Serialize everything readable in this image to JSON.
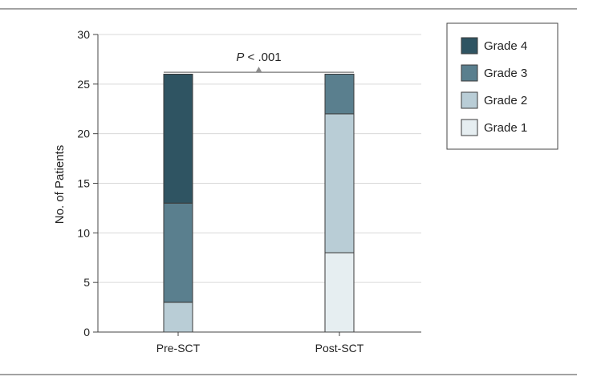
{
  "chart_data": {
    "type": "bar",
    "stacked": true,
    "categories": [
      "Pre-SCT",
      "Post-SCT"
    ],
    "series": [
      {
        "name": "Grade 1",
        "values": [
          0,
          8
        ],
        "color": "#e6eef1"
      },
      {
        "name": "Grade 2",
        "values": [
          3,
          14
        ],
        "color": "#b9cdd6"
      },
      {
        "name": "Grade 3",
        "values": [
          10,
          4
        ],
        "color": "#5a7f8e"
      },
      {
        "name": "Grade 4",
        "values": [
          13,
          0
        ],
        "color": "#2f5462"
      }
    ],
    "ylabel": "No. of Patients",
    "xlabel": "",
    "ylim": [
      0,
      30
    ],
    "yticks": [
      0,
      5,
      10,
      15,
      20,
      25,
      30
    ],
    "grid": true,
    "legend_position": "top-right",
    "legend_order": [
      "Grade 4",
      "Grade 3",
      "Grade 2",
      "Grade 1"
    ],
    "annotation": {
      "italic": "P",
      "rest": " < .001",
      "comparison_level": 27
    }
  },
  "colors": {
    "rule": "#444444",
    "grid": "#d9d9d9",
    "axis": "#444444",
    "bracket": "#8c8c8c"
  }
}
